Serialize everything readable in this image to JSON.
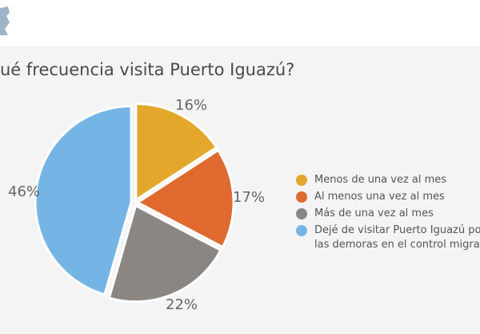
{
  "title": "ué frecuencia visita Puerto Iguazú?",
  "chart_data": {
    "type": "pie",
    "categories": [
      "Menos de una vez al mes",
      "Al menos una vez al mes",
      "Más de una vez al mes",
      "Dejé de visitar Puerto Iguazú por d las demoras en el control migrato"
    ],
    "values": [
      16,
      17,
      22,
      46
    ],
    "value_labels": [
      "16%",
      "17%",
      "22%",
      "46%"
    ],
    "colors": [
      "#e3a82b",
      "#e0692f",
      "#8b8682",
      "#74b5e6"
    ],
    "title": "ué frecuencia visita Puerto Iguazú?",
    "legend_position": "right"
  },
  "legend": [
    {
      "label": "Menos de una vez al mes",
      "color": "#e3a82b"
    },
    {
      "label": "Al menos una vez al mes",
      "color": "#e0692f"
    },
    {
      "label": "Más de una vez al mes",
      "color": "#8b8682"
    },
    {
      "label": "Dejé de visitar Puerto Iguazú por d las demoras en el control migrato",
      "color": "#74b5e6"
    }
  ]
}
